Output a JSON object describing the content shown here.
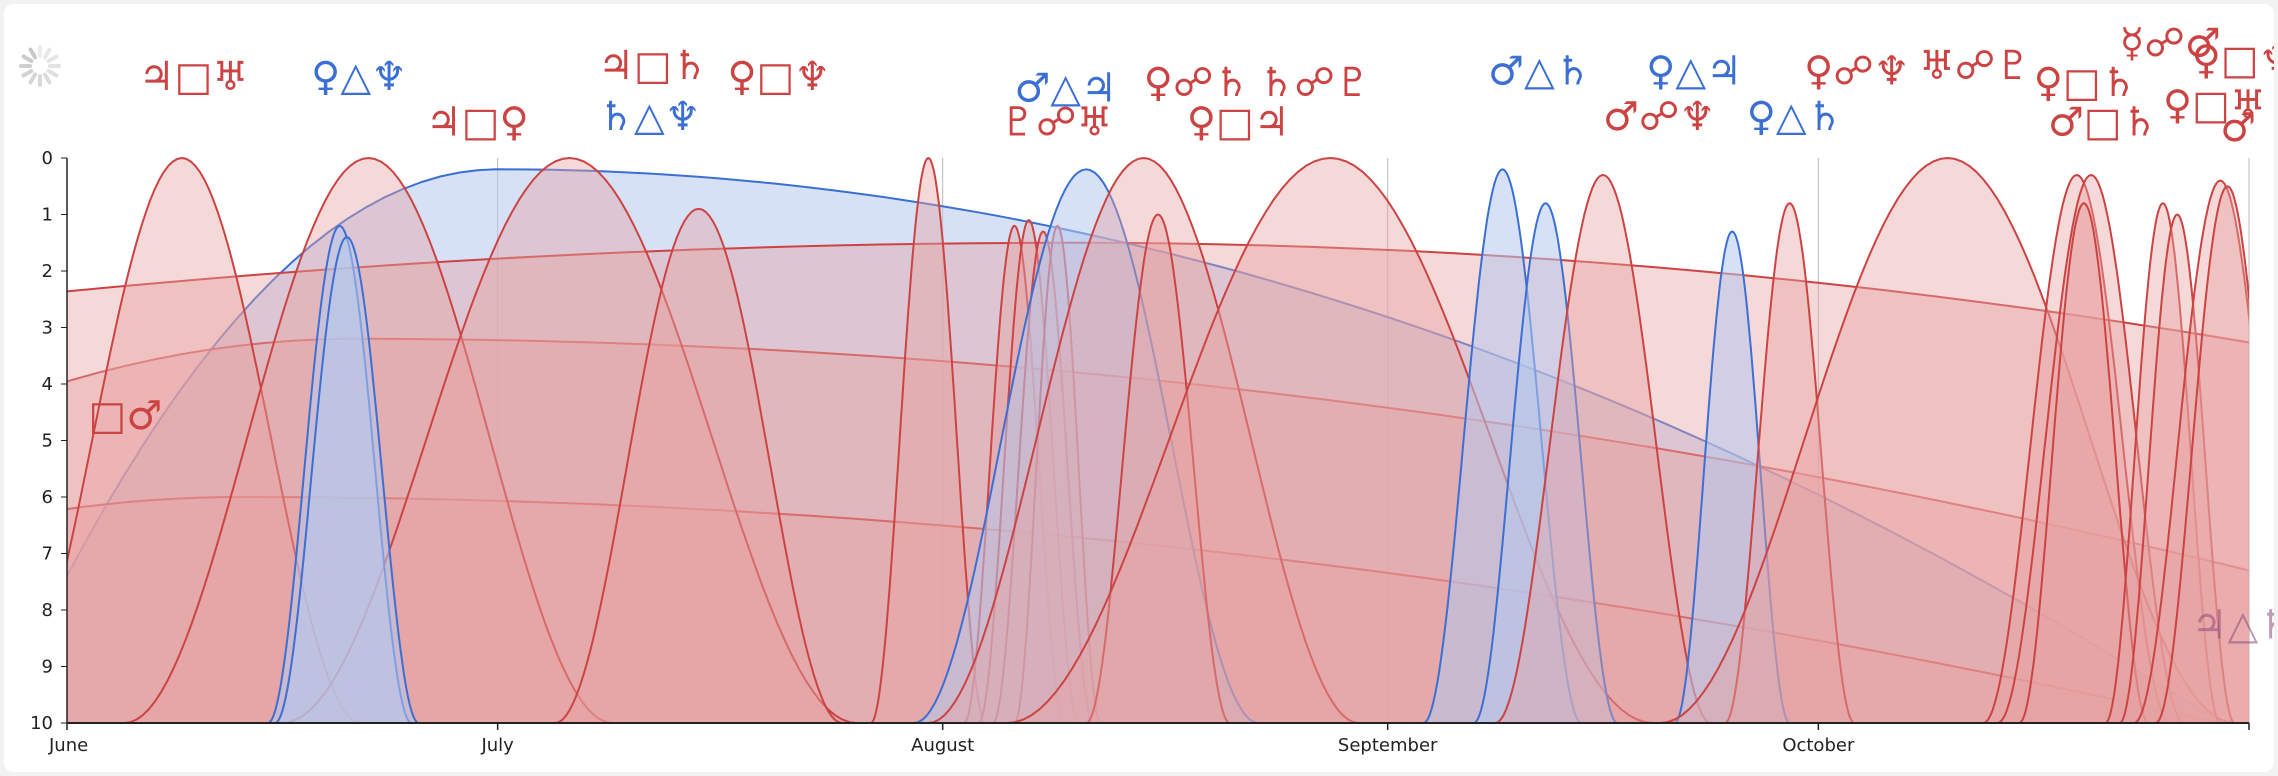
{
  "colors": {
    "harmonious": "#3c6fd3",
    "tense": "#cc4343",
    "harmonious_fill": "#b4c8ee",
    "tense_fill": "#e8a2a2",
    "axis": "#222222",
    "grid": "#b8b8b8"
  },
  "icons": {
    "loader": "spinner-icon"
  },
  "chart_data": {
    "type": "area",
    "y_axis": {
      "min": 0,
      "max": 10,
      "inverted": true,
      "ticks": [
        "0",
        "1",
        "2",
        "3",
        "4",
        "5",
        "6",
        "7",
        "8",
        "9",
        "10"
      ]
    },
    "x_axis": {
      "range_days": [
        0,
        152
      ],
      "ticks": [
        {
          "label": "June",
          "day": 0
        },
        {
          "label": "July",
          "day": 30
        },
        {
          "label": "August",
          "day": 61
        },
        {
          "label": "September",
          "day": 92
        },
        {
          "label": "October",
          "day": 122
        }
      ]
    },
    "grid": "vertical at month boundaries",
    "series": [
      {
        "kind": "harmonious",
        "shape": "arc",
        "start": -5,
        "peak": 30,
        "end": 150,
        "top": 0.2
      },
      {
        "kind": "tense",
        "shape": "arc",
        "start": -40,
        "peak": 20,
        "end": 190,
        "top": 3.2
      },
      {
        "kind": "tense",
        "shape": "arc",
        "start": -40,
        "peak": 12,
        "end": 150,
        "top": 6.0
      },
      {
        "kind": "tense",
        "shape": "arc",
        "start": -150,
        "peak": 70,
        "end": 250,
        "top": 1.5
      },
      {
        "kind": "tense",
        "peak": 8,
        "width": 25,
        "top": 0.0
      },
      {
        "kind": "tense",
        "peak": 21,
        "width": 34,
        "top": 0.0
      },
      {
        "kind": "tense",
        "peak": 35,
        "width": 40,
        "top": 0.0
      },
      {
        "kind": "tense",
        "peak": 44,
        "width": 20,
        "top": 0.9
      },
      {
        "kind": "tense",
        "peak": 60,
        "width": 8,
        "top": 0.0
      },
      {
        "kind": "harmonious",
        "peak": 19,
        "width": 10,
        "top": 1.2
      },
      {
        "kind": "harmonious",
        "peak": 19.5,
        "width": 10,
        "top": 1.4
      },
      {
        "kind": "tense",
        "peak": 66,
        "width": 7,
        "top": 1.2
      },
      {
        "kind": "tense",
        "peak": 67,
        "width": 7,
        "top": 1.1
      },
      {
        "kind": "tense",
        "peak": 68,
        "width": 7,
        "top": 1.3
      },
      {
        "kind": "tense",
        "peak": 69,
        "width": 6,
        "top": 1.2
      },
      {
        "kind": "harmonious",
        "peak": 71,
        "width": 24,
        "top": 0.2
      },
      {
        "kind": "tense",
        "peak": 75,
        "width": 30,
        "top": 0.0
      },
      {
        "kind": "tense",
        "peak": 76,
        "width": 10,
        "top": 1.0
      },
      {
        "kind": "tense",
        "peak": 88,
        "width": 45,
        "top": 0.0
      },
      {
        "kind": "harmonious",
        "peak": 100,
        "width": 11,
        "top": 0.2
      },
      {
        "kind": "harmonious",
        "peak": 103,
        "width": 10,
        "top": 0.8
      },
      {
        "kind": "tense",
        "peak": 107,
        "width": 15,
        "top": 0.3
      },
      {
        "kind": "harmonious",
        "peak": 116,
        "width": 8,
        "top": 1.3
      },
      {
        "kind": "tense",
        "peak": 120,
        "width": 9,
        "top": 0.8
      },
      {
        "kind": "tense",
        "peak": 131,
        "width": 40,
        "top": 0.0
      },
      {
        "kind": "tense",
        "peak": 140,
        "width": 13,
        "top": 0.3
      },
      {
        "kind": "tense",
        "peak": 141,
        "width": 13,
        "top": 0.3
      },
      {
        "kind": "tense",
        "peak": 140.5,
        "width": 9,
        "top": 0.8
      },
      {
        "kind": "tense",
        "peak": 146,
        "width": 8,
        "top": 0.8
      },
      {
        "kind": "tense",
        "peak": 147,
        "width": 8,
        "top": 1.0
      },
      {
        "kind": "tense",
        "peak": 150,
        "width": 12,
        "top": 0.4
      },
      {
        "kind": "tense",
        "peak": 150.5,
        "width": 10,
        "top": 0.5
      }
    ],
    "annotations": [
      {
        "kind": "tense",
        "day": 5,
        "y": -1.2,
        "symbols": "♃□♅"
      },
      {
        "kind": "harmonious",
        "day": 17,
        "y": -1.2,
        "symbols": "♀△♆"
      },
      {
        "kind": "tense",
        "day": 25,
        "y": -0.4,
        "symbols": "♃□♀"
      },
      {
        "kind": "tense",
        "day": 37,
        "y": -1.4,
        "symbols": "♃□♄"
      },
      {
        "kind": "tense",
        "day": 46,
        "y": -1.2,
        "symbols": "♀□♆"
      },
      {
        "kind": "harmonious",
        "day": 37,
        "y": -0.5,
        "symbols": "♄△♆"
      },
      {
        "kind": "harmonious",
        "day": 66,
        "y": -1.0,
        "symbols": "♂△♃"
      },
      {
        "kind": "tense",
        "day": 75,
        "y": -1.1,
        "symbols": "♀☍♄"
      },
      {
        "kind": "tense",
        "day": 83,
        "y": -1.1,
        "symbols": "♄☍♇"
      },
      {
        "kind": "tense",
        "day": 65,
        "y": -0.4,
        "symbols": "♇☍♅"
      },
      {
        "kind": "tense",
        "day": 78,
        "y": -0.4,
        "symbols": "♀□♃"
      },
      {
        "kind": "harmonious",
        "day": 99,
        "y": -1.3,
        "symbols": "♂△♄"
      },
      {
        "kind": "harmonious",
        "day": 110,
        "y": -1.3,
        "symbols": "♀△♃"
      },
      {
        "kind": "tense",
        "day": 107,
        "y": -0.5,
        "symbols": "♂☍♆"
      },
      {
        "kind": "harmonious",
        "day": 117,
        "y": -0.5,
        "symbols": "♀△♄"
      },
      {
        "kind": "tense",
        "day": 121,
        "y": -1.3,
        "symbols": "♀☍♆"
      },
      {
        "kind": "tense",
        "day": 129,
        "y": -1.4,
        "symbols": "♅☍♇"
      },
      {
        "kind": "tense",
        "day": 137,
        "y": -1.1,
        "symbols": "♀□♄"
      },
      {
        "kind": "tense",
        "day": 138,
        "y": -0.4,
        "symbols": "♂□♄"
      },
      {
        "kind": "tense",
        "day": 143,
        "y": -1.8,
        "symbols": "☿☍♂"
      },
      {
        "kind": "tense",
        "day": 148,
        "y": -1.5,
        "symbols": "♀□♆"
      },
      {
        "kind": "tense",
        "day": 146,
        "y": -0.7,
        "symbols": "♀□♅"
      },
      {
        "kind": "tense",
        "day": 150,
        "y": -0.3,
        "symbols": "♂"
      },
      {
        "kind": "tense",
        "day": 1.5,
        "y": 4.8,
        "symbols": "□♂"
      },
      {
        "kind": "tense-faded",
        "day": 148,
        "y": 8.5,
        "symbols": "♃△♄"
      }
    ]
  }
}
